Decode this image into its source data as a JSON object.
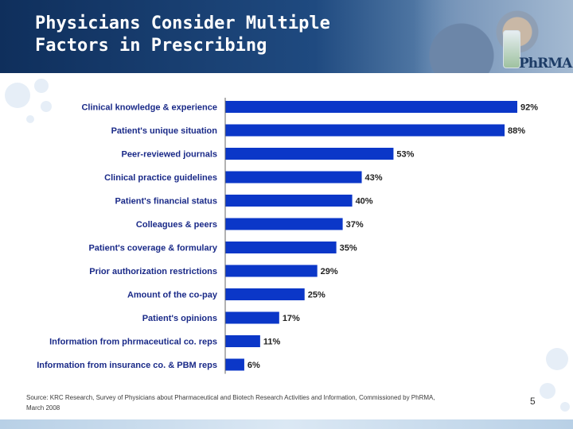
{
  "header": {
    "title": "Physicians Consider Multiple\nFactors in Prescribing",
    "logo_text": "PhRMA"
  },
  "colors": {
    "bar": "#0b37c8",
    "header_dark": "#0f2f5c",
    "label_text": "#1a2a88"
  },
  "chart_data": {
    "type": "bar",
    "orientation": "horizontal",
    "categories": [
      "Clinical knowledge & experience",
      "Patient's unique situation",
      "Peer-reviewed journals",
      "Clinical practice guidelines",
      "Patient's financial status",
      "Colleagues & peers",
      "Patient's coverage & formulary",
      "Prior authorization restrictions",
      "Amount of the co-pay",
      "Patient's opinions",
      "Information from phrmaceutical co. reps",
      "Information from insurance co. & PBM reps"
    ],
    "values": [
      92,
      88,
      53,
      43,
      40,
      37,
      35,
      29,
      25,
      17,
      11,
      6
    ],
    "value_labels": [
      "92%",
      "88%",
      "53%",
      "43%",
      "40%",
      "37%",
      "35%",
      "29%",
      "25%",
      "17%",
      "11%",
      "6%"
    ],
    "xlim": [
      0,
      100
    ],
    "title": "",
    "xlabel": "",
    "ylabel": "",
    "grid": false,
    "legend": "none"
  },
  "footer": {
    "source": "Source: KRC Research, Survey of Physicians about Pharmaceutical and Biotech Research Activities and Information, Commissioned by PhRMA, March 2008",
    "page_number": "5"
  }
}
